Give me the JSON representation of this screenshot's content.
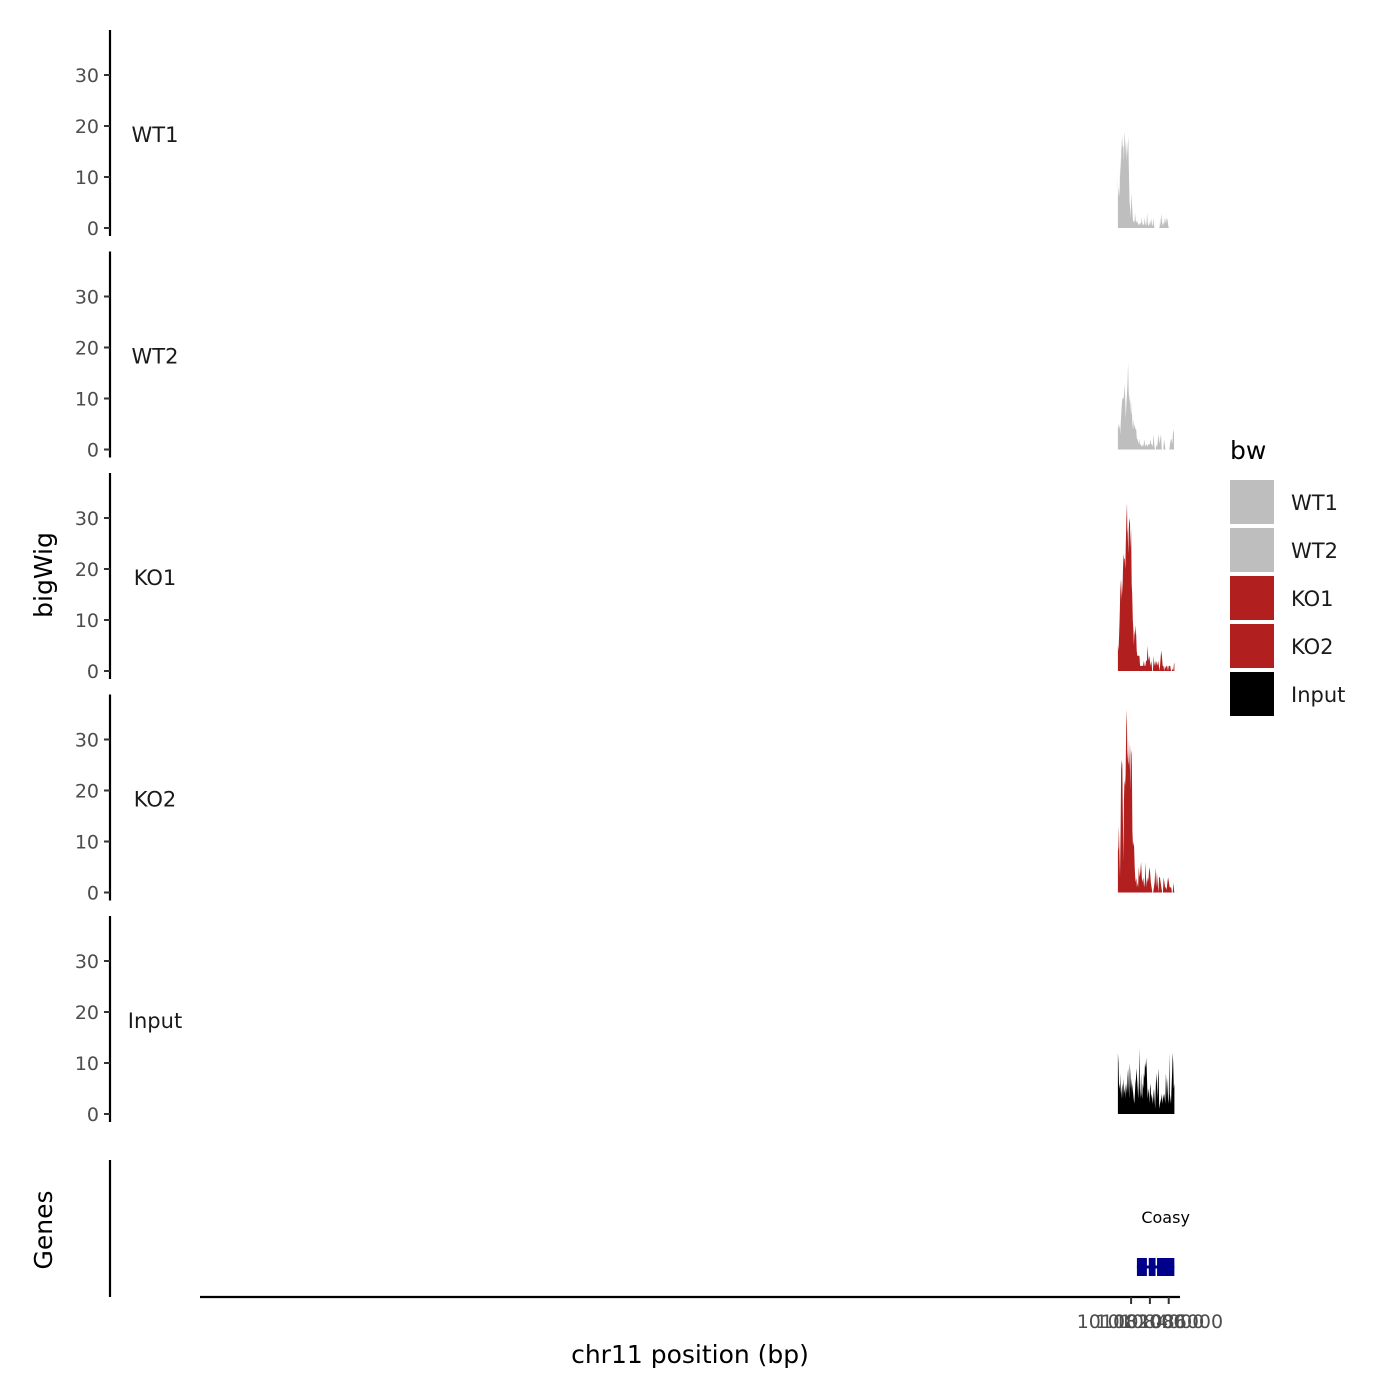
{
  "chart_data": {
    "type": "area",
    "ylabel": "bigWig",
    "xlabel": "chr11 position (bp)",
    "genes_label": "Genes",
    "xlim": [
      100983000,
      101087200
    ],
    "x_range_data": [
      100980500,
      101086600
    ],
    "xticks": [
      101082000,
      101084000,
      101086000
    ],
    "xtick_labels": [
      "101082000",
      "101084000",
      "101086000"
    ],
    "ylim": [
      0,
      38
    ],
    "yticks": [
      0,
      10,
      20,
      30
    ],
    "ytick_labels": [
      "0",
      "10",
      "20",
      "30"
    ],
    "legend": {
      "title": "bw",
      "position": "right",
      "entries": [
        {
          "label": "WT1",
          "color": "#bebebe"
        },
        {
          "label": "WT2",
          "color": "#bebebe"
        },
        {
          "label": "KO1",
          "color": "#b21f1f"
        },
        {
          "label": "KO2",
          "color": "#b21f1f"
        },
        {
          "label": "Input",
          "color": "#000000"
        }
      ]
    },
    "series": [
      {
        "name": "WT1",
        "color": "#bebebe",
        "x": [
          101080600,
          101080640,
          101080700,
          101080780,
          101080840,
          101080900,
          101080960,
          101081040,
          101081100,
          101081180,
          101081240,
          101081300,
          101081360,
          101081420,
          101081480,
          101081520,
          101081560,
          101081640,
          101081700,
          101081760,
          101081840,
          101081900,
          101081960,
          101082040,
          101082120,
          101082180,
          101082230,
          101082280,
          101082360,
          101082430,
          101082490,
          101082560,
          101082630,
          101082700,
          101082770,
          101082840,
          101082900,
          101082980,
          101083060,
          101083140,
          101083220,
          101083300,
          101083370,
          101083450,
          101083510,
          101083580,
          101083640,
          101083700,
          101083780,
          101083840,
          101083900,
          101083960,
          101084040,
          101084110,
          101084170,
          101084220,
          101084300,
          101084360,
          101084440,
          101084500,
          101084560,
          101084630,
          101084700,
          101084780,
          101084850,
          101084920,
          101084990,
          101085040,
          101085100,
          101085160,
          101085250,
          101085330,
          101085400,
          101085450,
          101085500,
          101085580,
          101085650,
          101085720,
          101085790,
          101085880,
          101085960,
          101086010,
          101086060,
          101086120,
          101086200,
          101086270,
          101086330,
          101086400,
          101086480,
          101086560,
          101086600
        ],
        "y": [
          10,
          6,
          8,
          6,
          14,
          10,
          15,
          18,
          16,
          16,
          13,
          19,
          17,
          16,
          13,
          17,
          14,
          16,
          18,
          12,
          5,
          4,
          2,
          7,
          4,
          2,
          1,
          1.5,
          1,
          3,
          1.5,
          1,
          1.5,
          1,
          0.8,
          0.5,
          0.8,
          1,
          0.8,
          2,
          0.5,
          0.8,
          0.5,
          2,
          1,
          0.4,
          0.8,
          3,
          1,
          0.5,
          0.5,
          0.8,
          1.5,
          0.5,
          2,
          0.5,
          0.5,
          2,
          0.5,
          0,
          0,
          0,
          0,
          0,
          0,
          0,
          0,
          0.4,
          2,
          0.4,
          3,
          0.4,
          1,
          1,
          0.5,
          2,
          1.5,
          0.8,
          2,
          1.5,
          0.4,
          0,
          0,
          0,
          0,
          0,
          0,
          0,
          0,
          0,
          0
        ]
      },
      {
        "name": "WT2",
        "color": "#bebebe",
        "x": [
          101080600,
          101080660,
          101080720,
          101080780,
          101080840,
          101080900,
          101080960,
          101081020,
          101081080,
          101081140,
          101081200,
          101081260,
          101081320,
          101081380,
          101081440,
          101081500,
          101081560,
          101081620,
          101081680,
          101081740,
          101081800,
          101081860,
          101081920,
          101081980,
          101082040,
          101082100,
          101082160,
          101082220,
          101082300,
          101082380,
          101082460,
          101082540,
          101082620,
          101082700,
          101082780,
          101082860,
          101082940,
          101083020,
          101083100,
          101083180,
          101083260,
          101083340,
          101083420,
          101083500,
          101083580,
          101083660,
          101083740,
          101083820,
          101083900,
          101083980,
          101084060,
          101084140,
          101084220,
          101084300,
          101084380,
          101084460,
          101084540,
          101084620,
          101084700,
          101084780,
          101084860,
          101084940,
          101085020,
          101085100,
          101085180,
          101085260,
          101085340,
          101085420,
          101085500,
          101085580,
          101085660,
          101085740,
          101085820,
          101085900,
          101085980,
          101086060,
          101086140,
          101086220,
          101086300,
          101086380,
          101086440,
          101086500,
          101086560
        ],
        "y": [
          4,
          5,
          4,
          5,
          3,
          5,
          7,
          9,
          10,
          10,
          10,
          11,
          13,
          9,
          6,
          9,
          11,
          13,
          17,
          12,
          9,
          11,
          7,
          10,
          7,
          7,
          4,
          6,
          4,
          5,
          4,
          4,
          2,
          2,
          1,
          2,
          1,
          1,
          0.5,
          1,
          0.5,
          1,
          2,
          0.5,
          1,
          1,
          0.5,
          1,
          1,
          1,
          2,
          1,
          1,
          0.5,
          3,
          1,
          0,
          0,
          1,
          0.5,
          2,
          3,
          1,
          2,
          3,
          0,
          0,
          0,
          2,
          1,
          0,
          0,
          0,
          0,
          0,
          0,
          1,
          2,
          2,
          1,
          3,
          4,
          3
        ]
      },
      {
        "name": "KO1",
        "color": "#b21f1f",
        "x": [
          101080600,
          101080660,
          101080720,
          101080780,
          101080840,
          101080900,
          101080960,
          101081020,
          101081080,
          101081140,
          101081200,
          101081260,
          101081320,
          101081380,
          101081440,
          101081500,
          101081560,
          101081600,
          101081640,
          101081700,
          101081760,
          101081820,
          101081880,
          101081940,
          101082000,
          101082060,
          101082120,
          101082180,
          101082240,
          101082300,
          101082360,
          101082420,
          101082480,
          101082540,
          101082600,
          101082660,
          101082720,
          101082800,
          101082880,
          101082960,
          101083040,
          101083120,
          101083200,
          101083280,
          101083360,
          101083440,
          101083520,
          101083600,
          101083680,
          101083760,
          101083840,
          101083920,
          101084000,
          101084080,
          101084160,
          101084240,
          101084320,
          101084400,
          101084480,
          101084560,
          101084640,
          101084720,
          101084800,
          101084880,
          101084960,
          101085040,
          101085120,
          101085200,
          101085280,
          101085360,
          101085440,
          101085520,
          101085600,
          101085680,
          101085760,
          101085840,
          101085920,
          101086000,
          101086080,
          101086160,
          101086240,
          101086320,
          101086400,
          101086480,
          101086560,
          101086600
        ],
        "y": [
          5,
          4,
          7,
          10,
          15,
          18,
          14,
          18,
          15,
          20,
          23,
          22,
          22,
          20,
          25,
          30,
          33,
          28,
          27,
          23,
          28,
          30,
          29,
          24,
          28,
          17,
          15,
          10,
          8,
          5,
          8,
          7,
          9,
          7,
          4,
          3,
          3,
          3,
          3,
          1,
          1,
          1,
          1,
          1,
          2,
          1,
          1,
          2,
          2,
          5,
          2,
          3,
          2,
          1,
          2,
          0,
          0,
          3,
          1,
          2,
          1,
          2,
          1,
          2,
          1,
          0,
          2,
          4,
          3,
          1,
          1,
          0,
          1,
          0.5,
          1,
          1,
          0,
          1,
          1,
          1,
          0,
          0,
          0.5,
          0,
          1.5,
          1.5
        ]
      },
      {
        "name": "KO2",
        "color": "#b21f1f",
        "x": [
          101080600,
          101080650,
          101080700,
          101080760,
          101080820,
          101080880,
          101080940,
          101081000,
          101081060,
          101081120,
          101081180,
          101081240,
          101081300,
          101081360,
          101081420,
          101081480,
          101081540,
          101081600,
          101081660,
          101081720,
          101081780,
          101081840,
          101081900,
          101081960,
          101082020,
          101082080,
          101082140,
          101082200,
          101082260,
          101082320,
          101082380,
          101082440,
          101082500,
          101082560,
          101082620,
          101082680,
          101082740,
          101082820,
          101082900,
          101082980,
          101083060,
          101083140,
          101083220,
          101083300,
          101083380,
          101083460,
          101083540,
          101083620,
          101083700,
          101083780,
          101083860,
          101083940,
          101084020,
          101084100,
          101084180,
          101084260,
          101084340,
          101084420,
          101084500,
          101084580,
          101084660,
          101084740,
          101084820,
          101084900,
          101084980,
          101085060,
          101085140,
          101085220,
          101085300,
          101085380,
          101085460,
          101085540,
          101085620,
          101085700,
          101085780,
          101085860,
          101085940,
          101086020,
          101086100,
          101086180,
          101086260,
          101086340,
          101086420,
          101086500,
          101086560,
          101086600
        ],
        "y": [
          8,
          9,
          13,
          8,
          3,
          12,
          24,
          26,
          25,
          16,
          6,
          18,
          22,
          21,
          23,
          32,
          36,
          28,
          26,
          25,
          30,
          24,
          29,
          20,
          28,
          27,
          12,
          9,
          10,
          9,
          5,
          3,
          2,
          3,
          1,
          2,
          1,
          5,
          3,
          4,
          6,
          3,
          2,
          3,
          1,
          2,
          6,
          1,
          3,
          2,
          3,
          5,
          4,
          2,
          1,
          0,
          0,
          1,
          2,
          5,
          1,
          4,
          2,
          0,
          3,
          3,
          2,
          1,
          0,
          0,
          3,
          2,
          1,
          1,
          0.5,
          2,
          3,
          2,
          1,
          1,
          1,
          0,
          0,
          2,
          0.5,
          0
        ]
      },
      {
        "name": "Input",
        "color": "#000000",
        "x": [
          101080600,
          101080660,
          101080720,
          101080780,
          101080840,
          101080900,
          101080960,
          101081020,
          101081080,
          101081140,
          101081200,
          101081260,
          101081320,
          101081380,
          101081440,
          101081500,
          101081560,
          101081620,
          101081680,
          101081740,
          101081800,
          101081860,
          101081920,
          101081980,
          101082040,
          101082100,
          101082160,
          101082220,
          101082280,
          101082340,
          101082400,
          101082460,
          101082520,
          101082580,
          101082640,
          101082700,
          101082760,
          101082820,
          101082880,
          101082940,
          101083000,
          101083060,
          101083120,
          101083180,
          101083240,
          101083300,
          101083360,
          101083420,
          101083480,
          101083540,
          101083600,
          101083660,
          101083720,
          101083780,
          101083840,
          101083900,
          101083960,
          101084020,
          101084080,
          101084140,
          101084200,
          101084260,
          101084320,
          101084380,
          101084440,
          101084500,
          101084560,
          101084620,
          101084680,
          101084740,
          101084800,
          101084860,
          101084920,
          101084980,
          101085040,
          101085100,
          101085160,
          101085220,
          101085280,
          101085340,
          101085400,
          101085460,
          101085520,
          101085580,
          101085640,
          101085700,
          101085760,
          101085820,
          101085880,
          101085940,
          101086000,
          101086060,
          101086120,
          101086180,
          101086240,
          101086300,
          101086360,
          101086420,
          101086480,
          101086540,
          101086600
        ],
        "y": [
          12,
          10,
          5,
          6,
          4,
          8,
          3,
          5,
          6,
          3,
          7,
          5,
          4,
          6,
          3,
          6,
          4,
          7,
          9,
          6,
          3,
          10,
          8,
          5,
          7,
          4,
          6,
          4,
          3,
          2,
          4,
          6,
          7,
          9,
          7,
          5,
          3,
          6,
          13,
          5,
          3,
          8,
          4,
          3,
          6,
          5,
          8,
          7,
          10,
          9,
          11,
          9,
          5,
          3,
          5,
          4,
          2,
          6,
          5,
          3,
          4,
          3,
          2,
          4,
          5,
          3,
          1,
          5,
          8,
          6,
          3,
          7,
          9,
          2,
          1,
          3,
          2,
          4,
          3,
          2,
          4,
          3,
          4,
          3,
          2,
          8,
          6,
          3,
          7,
          3,
          2,
          12,
          4,
          3,
          2,
          5,
          8,
          12,
          10,
          5,
          6
        ]
      }
    ],
    "gene": {
      "name": "Coasy",
      "strand": "+",
      "start": 101082620,
      "end": 101086600,
      "exons": [
        [
          101082620,
          101082680
        ],
        [
          101082700,
          101083680
        ],
        [
          101083880,
          101084600
        ],
        [
          101084760,
          101084820
        ],
        [
          101085000,
          101085040
        ],
        [
          101085160,
          101085240
        ],
        [
          101085340,
          101085400
        ],
        [
          101085520,
          101085560
        ],
        [
          101085760,
          101085800
        ],
        [
          101085980,
          101086040
        ],
        [
          101086220,
          101086600
        ]
      ]
    }
  }
}
